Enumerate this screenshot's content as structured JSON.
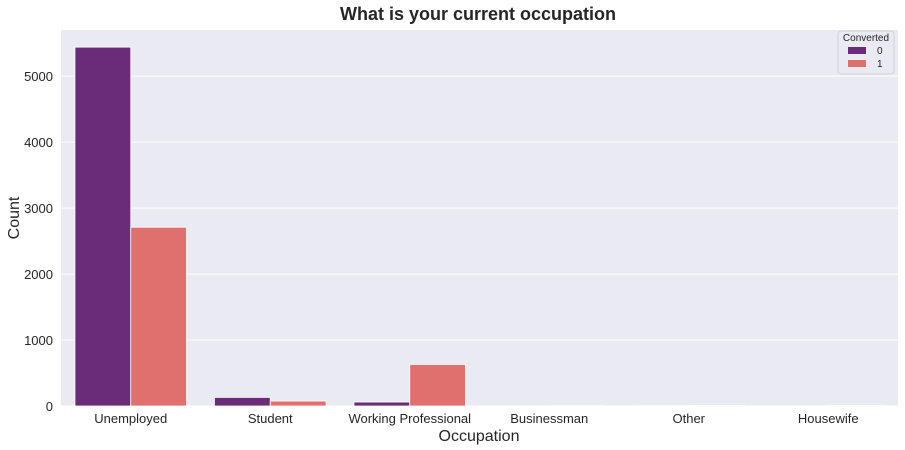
{
  "chart_data": {
    "type": "bar",
    "title": "What is your current occupation",
    "xlabel": "Occupation",
    "ylabel": "Count",
    "categories": [
      "Unemployed",
      "Student",
      "Working Professional",
      "Businessman",
      "Other",
      "Housewife"
    ],
    "series": [
      {
        "name": "0",
        "values": [
          5440,
          130,
          60,
          3,
          5,
          0
        ],
        "color": "#6a2c79"
      },
      {
        "name": "1",
        "values": [
          2710,
          75,
          630,
          5,
          10,
          10
        ],
        "color": "#e0706e"
      }
    ],
    "ylim": [
      0,
      5700
    ],
    "yticks": [
      "0",
      "1000",
      "2000",
      "3000",
      "4000",
      "5000"
    ],
    "grid": true,
    "legend": {
      "title": "Converted",
      "placement": "top-right"
    },
    "background": "#eaeaf2"
  }
}
